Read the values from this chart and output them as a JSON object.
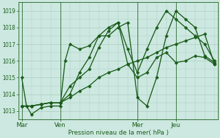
{
  "background_color": "#cce8e0",
  "grid_color": "#aaccbf",
  "line_color": "#1a5c1a",
  "title": "Pression niveau de la mer( hPa )",
  "ylim": [
    1012.5,
    1019.5
  ],
  "yticks": [
    1013,
    1014,
    1015,
    1016,
    1017,
    1018,
    1019
  ],
  "xtick_labels": [
    "Mar",
    "Ven",
    "Mer",
    "Jeu"
  ],
  "xtick_positions": [
    0,
    24,
    72,
    96
  ],
  "total_hours": 120,
  "series1_x": [
    0,
    3,
    6,
    12,
    18,
    24,
    27,
    30,
    36,
    42,
    48,
    54,
    60,
    66,
    72,
    78,
    84,
    90,
    96,
    102,
    108,
    114,
    120
  ],
  "series1_y": [
    1015.0,
    1013.3,
    1012.8,
    1013.2,
    1013.3,
    1013.3,
    1016.0,
    1017.0,
    1016.7,
    1016.9,
    1017.5,
    1017.5,
    1018.0,
    1018.3,
    1013.8,
    1013.3,
    1015.0,
    1017.5,
    1019.0,
    1018.5,
    1018.0,
    1016.3,
    1015.9
  ],
  "series2_x": [
    0,
    6,
    12,
    18,
    24,
    30,
    36,
    42,
    48,
    54,
    60,
    66,
    72,
    78,
    84,
    90,
    96,
    102,
    108,
    114,
    120
  ],
  "series2_y": [
    1013.3,
    1013.3,
    1013.4,
    1013.5,
    1013.5,
    1013.8,
    1014.2,
    1014.5,
    1015.0,
    1015.3,
    1015.5,
    1015.8,
    1016.0,
    1016.2,
    1016.5,
    1016.8,
    1017.0,
    1017.2,
    1017.4,
    1017.6,
    1015.8
  ],
  "series3_x": [
    0,
    6,
    12,
    18,
    24,
    30,
    36,
    42,
    48,
    54,
    60,
    66,
    72,
    78,
    84,
    90,
    96,
    102,
    108,
    114,
    120
  ],
  "series3_y": [
    1013.3,
    1013.3,
    1013.4,
    1013.5,
    1013.5,
    1014.0,
    1015.3,
    1016.2,
    1017.5,
    1018.0,
    1018.3,
    1015.8,
    1015.0,
    1015.3,
    1016.2,
    1016.5,
    1015.9,
    1016.0,
    1016.3,
    1016.2,
    1015.8
  ],
  "series4_x": [
    0,
    6,
    12,
    18,
    24,
    30,
    36,
    42,
    48,
    54,
    60,
    66,
    72,
    78,
    84,
    90,
    96,
    102,
    108,
    114,
    120
  ],
  "series4_y": [
    1013.3,
    1013.3,
    1013.4,
    1013.5,
    1013.5,
    1014.5,
    1015.0,
    1015.5,
    1016.8,
    1017.8,
    1018.3,
    1016.7,
    1015.3,
    1016.7,
    1018.0,
    1019.0,
    1018.5,
    1018.0,
    1017.5,
    1017.0,
    1016.0
  ]
}
